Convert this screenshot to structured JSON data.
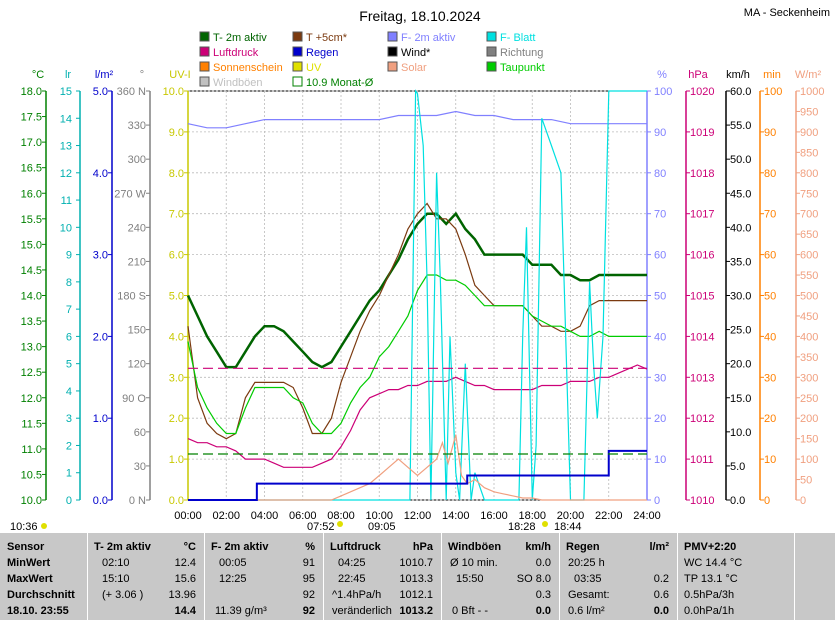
{
  "header": {
    "title": "Freitag, 18.10.2024",
    "station": "MA - Seckenheim"
  },
  "legend": [
    {
      "label": "T- 2m aktiv",
      "color": "#006400"
    },
    {
      "label": "T +5cm*",
      "color": "#7b3a10"
    },
    {
      "label": "F- 2m aktiv",
      "color": "#8080ff"
    },
    {
      "label": "F- Blatt",
      "color": "#00e0e0"
    },
    {
      "label": "Luftdruck",
      "color": "#cc0077"
    },
    {
      "label": "Regen",
      "color": "#0000cc"
    },
    {
      "label": "Wind*",
      "color": "#000000"
    },
    {
      "label": "Richtung",
      "color": "#808080"
    },
    {
      "label": "Sonnenschein",
      "color": "#ff8000"
    },
    {
      "label": "UV",
      "color": "#e0e000"
    },
    {
      "label": "Solar",
      "color": "#f0a080"
    },
    {
      "label": "Taupunkt",
      "color": "#00cc00"
    },
    {
      "label": "Windböen",
      "color": "#c0c0c0"
    },
    {
      "label": "10.9 Monat-Ø",
      "color": "#008000"
    }
  ],
  "chart_data": {
    "type": "line",
    "x_ticks": [
      "00:00",
      "02:00",
      "04:00",
      "06:00",
      "08:00",
      "10:00",
      "12:00",
      "14:00",
      "16:00",
      "18:00",
      "20:00",
      "22:00",
      "24:00"
    ],
    "axes": {
      "temp_c": {
        "unit": "°C",
        "color": "#008000",
        "ticks": [
          "18.0",
          "17.5",
          "17.0",
          "16.5",
          "16.0",
          "15.5",
          "15.0",
          "14.5",
          "14.0",
          "13.5",
          "13.0",
          "12.5",
          "12.0",
          "11.5",
          "11.0",
          "10.5",
          "10.0"
        ],
        "range": [
          10,
          18
        ]
      },
      "lr": {
        "unit": "lr",
        "color": "#00b0b0",
        "ticks": [
          "15",
          "14",
          "13",
          "12",
          "11",
          "10",
          "9",
          "8",
          "7",
          "6",
          "5",
          "4",
          "3",
          "2",
          "1",
          "0"
        ],
        "range": [
          0,
          15
        ]
      },
      "rain": {
        "unit": "l/m²",
        "color": "#0000cc",
        "ticks": [
          "5.0",
          "4.0",
          "3.0",
          "2.0",
          "1.0",
          "0.0"
        ],
        "range": [
          0,
          5
        ]
      },
      "dir": {
        "unit": "°",
        "color": "#808080",
        "ticks": [
          "360 N",
          "330",
          "300",
          "270 W",
          "240",
          "210",
          "180 S",
          "150",
          "120",
          "90 O",
          "60",
          "30",
          "0 N"
        ],
        "range": [
          0,
          360
        ]
      },
      "uv": {
        "unit": "UV-I",
        "color": "#c8c800",
        "ticks": [
          "10.0",
          "9.0",
          "8.0",
          "7.0",
          "6.0",
          "5.0",
          "4.0",
          "3.0",
          "2.0",
          "1.0",
          "0.0"
        ],
        "range": [
          0,
          10
        ]
      },
      "hum": {
        "unit": "%",
        "color": "#8080ff",
        "ticks": [
          "100",
          "90",
          "80",
          "70",
          "60",
          "50",
          "40",
          "30",
          "20",
          "10",
          "0"
        ],
        "range": [
          0,
          100
        ]
      },
      "press": {
        "unit": "hPa",
        "color": "#cc0077",
        "ticks": [
          "1020",
          "1019",
          "1018",
          "1017",
          "1016",
          "1015",
          "1014",
          "1013",
          "1012",
          "1011",
          "1010"
        ],
        "range": [
          1010,
          1020
        ]
      },
      "wind": {
        "unit": "km/h",
        "color": "#000000",
        "ticks": [
          "60.0",
          "55.0",
          "50.0",
          "45.0",
          "40.0",
          "35.0",
          "30.0",
          "25.0",
          "20.0",
          "15.0",
          "10.0",
          "5.0",
          "0.0"
        ],
        "range": [
          0,
          60
        ]
      },
      "min": {
        "unit": "min",
        "color": "#ff8000",
        "ticks": [
          "100",
          "90",
          "80",
          "70",
          "60",
          "50",
          "40",
          "30",
          "20",
          "10",
          "0"
        ],
        "range": [
          0,
          100
        ]
      },
      "solar": {
        "unit": "W/m²",
        "color": "#f0a080",
        "ticks": [
          "1000",
          "950",
          "900",
          "850",
          "800",
          "750",
          "700",
          "650",
          "600",
          "550",
          "500",
          "450",
          "400",
          "350",
          "300",
          "250",
          "200",
          "150",
          "100",
          "50",
          "0"
        ],
        "range": [
          0,
          1000
        ]
      }
    },
    "series": [
      {
        "name": "T- 2m aktiv",
        "axis": "temp_c",
        "color": "#006400",
        "x": [
          0,
          0.5,
          1,
          1.5,
          2,
          2.5,
          3,
          3.5,
          4,
          4.5,
          5,
          5.5,
          6,
          6.5,
          7,
          7.5,
          8,
          8.5,
          9,
          9.5,
          10,
          10.5,
          11,
          11.5,
          12,
          12.5,
          13,
          13.5,
          14,
          14.5,
          15,
          15.5,
          16,
          16.5,
          17,
          17.5,
          18,
          18.5,
          19,
          19.5,
          20,
          20.5,
          21,
          21.5,
          22,
          22.5,
          23,
          24
        ],
        "y": [
          14.0,
          13.6,
          13.2,
          12.9,
          12.6,
          12.6,
          12.9,
          13.2,
          13.4,
          13.4,
          13.3,
          13.1,
          12.9,
          12.7,
          12.6,
          12.7,
          13.0,
          13.3,
          13.6,
          13.9,
          14.1,
          14.4,
          14.7,
          15.1,
          15.4,
          15.6,
          15.6,
          15.4,
          15.6,
          15.3,
          15.1,
          14.8,
          14.8,
          14.8,
          14.8,
          14.8,
          14.6,
          14.6,
          14.6,
          14.4,
          14.4,
          14.3,
          14.3,
          14.4,
          14.4,
          14.4,
          14.4,
          14.4
        ]
      },
      {
        "name": "T +5cm*",
        "axis": "temp_c",
        "color": "#7b3a10",
        "x": [
          0,
          0.5,
          1,
          1.5,
          2,
          2.5,
          3,
          3.5,
          4,
          4.5,
          5,
          5.5,
          6,
          6.5,
          7,
          7.5,
          8,
          8.5,
          9,
          9.5,
          10,
          10.5,
          11,
          11.5,
          12,
          12.5,
          13,
          13.5,
          14,
          14.5,
          15,
          15.5,
          16,
          16.5,
          17,
          17.5,
          18,
          18.5,
          19,
          19.5,
          20,
          20.5,
          21,
          21.5,
          22,
          22.5,
          23,
          24
        ],
        "y": [
          13.4,
          12.0,
          11.5,
          11.3,
          11.2,
          11.3,
          12.0,
          12.3,
          12.3,
          12.3,
          12.3,
          12.2,
          11.8,
          11.3,
          11.3,
          11.6,
          12.3,
          12.8,
          13.3,
          13.7,
          14.0,
          14.4,
          14.8,
          15.3,
          15.6,
          15.8,
          15.5,
          15.5,
          15.3,
          14.8,
          14.2,
          14.0,
          13.8,
          13.8,
          13.8,
          13.8,
          13.6,
          13.4,
          13.4,
          13.3,
          13.3,
          13.4,
          13.8,
          13.9,
          13.9,
          13.9,
          13.9,
          13.9
        ]
      },
      {
        "name": "Taupunkt",
        "axis": "temp_c",
        "color": "#00cc00",
        "x": [
          0,
          0.5,
          1,
          1.5,
          2,
          2.5,
          3,
          3.5,
          4,
          4.5,
          5,
          5.5,
          6,
          6.5,
          7,
          7.5,
          8,
          8.5,
          9,
          9.5,
          10,
          10.5,
          11,
          11.5,
          12,
          12.5,
          13,
          13.5,
          14,
          14.5,
          15,
          15.5,
          16,
          16.5,
          17,
          17.5,
          18,
          18.5,
          19,
          19.5,
          20,
          20.5,
          21,
          21.5,
          22,
          22.5,
          23,
          24
        ],
        "y": [
          13.1,
          12.2,
          11.8,
          11.5,
          11.3,
          11.3,
          11.8,
          12.2,
          12.2,
          12.2,
          12.2,
          12.0,
          11.9,
          11.5,
          11.3,
          11.3,
          11.5,
          11.9,
          12.2,
          12.4,
          12.8,
          13.0,
          13.3,
          13.6,
          14.1,
          14.4,
          14.4,
          14.3,
          14.3,
          14.2,
          14.0,
          13.8,
          13.8,
          13.8,
          13.8,
          13.8,
          13.6,
          13.5,
          13.4,
          13.4,
          13.3,
          13.2,
          13.2,
          13.3,
          13.2,
          13.2,
          13.2,
          13.2
        ]
      },
      {
        "name": "F- 2m aktiv",
        "axis": "hum",
        "color": "#8080ff",
        "x": [
          0,
          1,
          2,
          3,
          4,
          5,
          6,
          7,
          8,
          9,
          10,
          11,
          12,
          13,
          14,
          15,
          16,
          17,
          18,
          19,
          20,
          21,
          22,
          23,
          24
        ],
        "y": [
          92,
          91,
          91,
          92,
          93,
          93,
          93,
          93,
          93,
          93,
          93,
          94,
          94,
          94,
          95,
          94,
          94,
          93,
          93,
          93,
          92,
          92,
          92,
          92,
          92
        ]
      },
      {
        "name": "Luftdruck",
        "axis": "press",
        "color": "#cc0077",
        "x": [
          0,
          0.5,
          1,
          1.5,
          2,
          2.5,
          3,
          3.5,
          4,
          4.5,
          5,
          5.5,
          6,
          6.5,
          7,
          7.5,
          8,
          8.5,
          9,
          9.5,
          10,
          10.5,
          11,
          11.5,
          12,
          12.5,
          13,
          13.5,
          14,
          14.5,
          15,
          15.5,
          16,
          16.5,
          17,
          17.5,
          18,
          18.5,
          19,
          19.5,
          20,
          20.5,
          21,
          21.5,
          22,
          22.5,
          23,
          23.5,
          24
        ],
        "y": [
          1011.5,
          1011.4,
          1011.4,
          1011.3,
          1011.3,
          1011.2,
          1011.0,
          1011.0,
          1011.0,
          1010.9,
          1010.8,
          1010.8,
          1010.8,
          1010.8,
          1010.9,
          1011.0,
          1011.3,
          1011.7,
          1012.2,
          1012.5,
          1012.6,
          1012.7,
          1012.7,
          1012.8,
          1012.8,
          1012.9,
          1012.9,
          1012.9,
          1013.0,
          1012.9,
          1012.8,
          1012.8,
          1012.7,
          1012.7,
          1012.7,
          1012.7,
          1012.7,
          1012.8,
          1012.8,
          1012.8,
          1012.9,
          1012.9,
          1012.9,
          1013.0,
          1013.0,
          1013.1,
          1013.2,
          1013.3,
          1013.2
        ]
      },
      {
        "name": "F- Blatt",
        "axis": "lr",
        "color": "#00e0e0",
        "x": [
          0,
          11.6,
          11.9,
          12.0,
          12.3,
          12.5,
          12.7,
          13.0,
          13.2,
          13.5,
          13.7,
          14.0,
          14.2,
          14.5,
          14.8,
          15.0,
          15.5,
          16.0,
          16.5,
          17.0,
          17.3,
          17.5,
          17.7,
          18.0,
          18.2,
          18.5,
          19.0,
          19.5,
          20.0,
          20.3,
          20.5,
          20.7,
          21.0,
          21.2,
          21.4,
          21.7,
          22.0,
          24
        ],
        "y": [
          0,
          0,
          15,
          14.9,
          13.0,
          8.0,
          0,
          12.0,
          8.0,
          0,
          6.0,
          1.0,
          0,
          5.0,
          0,
          1.0,
          0,
          0,
          0,
          0,
          0,
          6.0,
          10.0,
          0,
          2.0,
          14.0,
          13.0,
          12.0,
          0,
          0,
          0,
          0,
          8.0,
          5.0,
          3.0,
          6.0,
          15,
          15
        ]
      },
      {
        "name": "Solar",
        "axis": "solar",
        "color": "#f0a080",
        "x": [
          0,
          7.5,
          8,
          8.5,
          9,
          9.5,
          10,
          10.5,
          11,
          11.5,
          12,
          12.5,
          13,
          13.3,
          13.6,
          14,
          14.3,
          14.6,
          15,
          15.5,
          16,
          16.5,
          17,
          17.5,
          18,
          18.5,
          19,
          24
        ],
        "y": [
          0,
          0,
          10,
          20,
          30,
          40,
          60,
          80,
          100,
          80,
          60,
          80,
          100,
          140,
          90,
          160,
          60,
          40,
          50,
          30,
          20,
          15,
          10,
          5,
          5,
          0,
          0,
          0
        ]
      },
      {
        "name": "Regen",
        "axis": "rain",
        "color": "#0000cc",
        "step": true,
        "x": [
          0,
          3.6,
          3.6,
          14.6,
          14.6,
          22.0,
          22.0,
          24
        ],
        "y": [
          0,
          0,
          0.2,
          0.2,
          0.3,
          0.3,
          0.6,
          0.6
        ]
      },
      {
        "name": "10.9 Monat-Ø",
        "axis": "temp_c",
        "color": "#008000",
        "dashed": true,
        "x": [
          0,
          24
        ],
        "y": [
          10.9,
          10.9
        ]
      },
      {
        "name": "Richtung",
        "axis": "hum",
        "color": "#cc0077",
        "dashed": true,
        "x": [
          0,
          24
        ],
        "y": [
          32.2,
          32.2
        ]
      }
    ]
  },
  "events": {
    "sunrise": "07:52",
    "sunset": "18:28",
    "left_time": "10:36",
    "noon_mark": "09:05",
    "evening_mark": "18:44"
  },
  "table": {
    "sensor": {
      "h": "Sensor",
      "r1": "MinWert",
      "r2": "MaxWert",
      "r3": "Durchschnitt",
      "r4": "18.10. 23:55"
    },
    "temp": {
      "h": "T- 2m aktiv",
      "u": "°C",
      "r1a": "02:10",
      "r1b": "12.4",
      "r2a": "15:10",
      "r2b": "15.6",
      "r3a": "(+ 3.06 )",
      "r3b": "13.96",
      "r4b": "14.4"
    },
    "hum": {
      "h": "F- 2m aktiv",
      "u": "%",
      "r1a": "00:05",
      "r1b": "91",
      "r2a": "12:25",
      "r2b": "95",
      "r3b": "92",
      "r4a": "11.39 g/m³",
      "r4b": "92"
    },
    "press": {
      "h": "Luftdruck",
      "u": "hPa",
      "r1a": "04:25",
      "r1b": "1010.7",
      "r2a": "22:45",
      "r2b": "1013.3",
      "r3a": "^1.4hPa/h",
      "r3b": "1012.1",
      "r4a": "veränderlich",
      "r4b": "1013.2"
    },
    "wind": {
      "h": "Windböen",
      "u": "km/h",
      "r1a": "Ø 10 min.",
      "r1b": "0.0",
      "r2a": "15:50",
      "r2b": "SO 8.0",
      "r3b": "0.3",
      "r4a": "0 Bft - -",
      "r4b": "0.0"
    },
    "rain": {
      "h": "Regen",
      "u": "l/m²",
      "r1a": "20:25 h",
      "r2a": "03:35",
      "r2b": "0.2",
      "r3a": "Gesamt:",
      "r3b": "0.6",
      "r4a": "0.6 l/m²",
      "r4b": "0.0"
    },
    "pmv": {
      "h": "PMV+2:20",
      "r1": "WC 14.4 °C",
      "r2": "TP 13.1 °C",
      "r3": "0.5hPa/3h",
      "r4": "0.0hPa/1h"
    }
  }
}
